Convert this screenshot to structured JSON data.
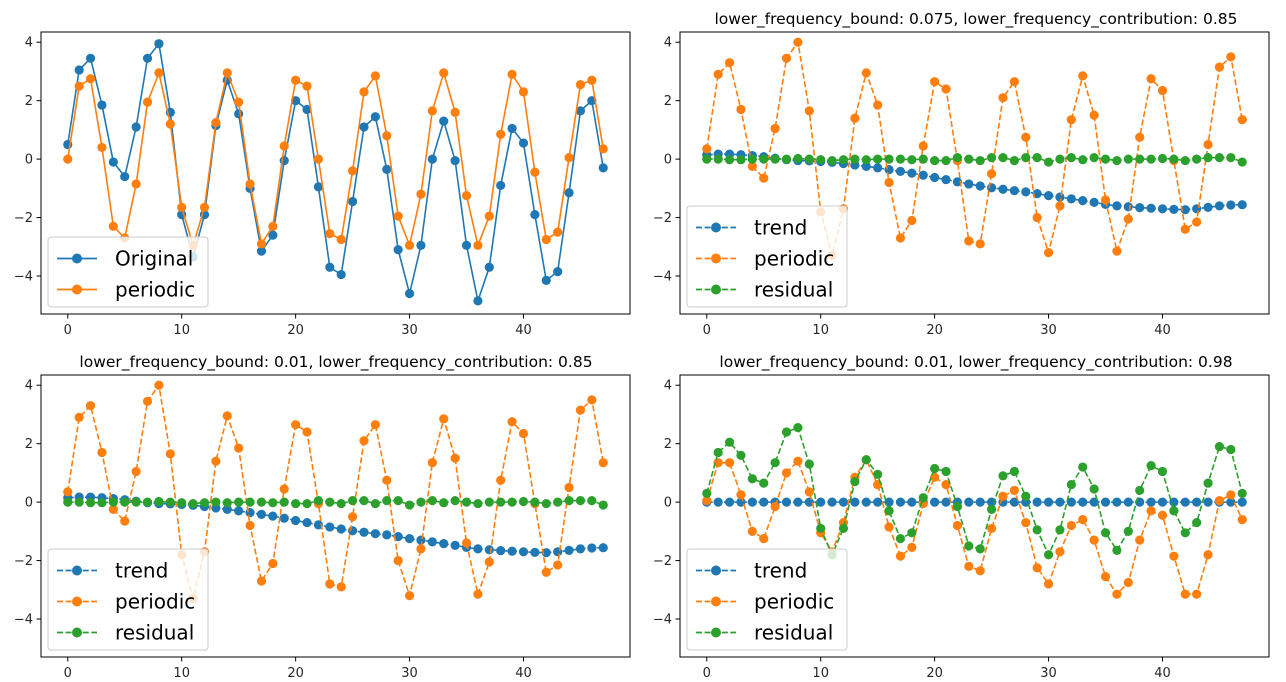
{
  "colors": {
    "trend": "#1f77b4",
    "original": "#1f77b4",
    "periodic": "#ff7f0e",
    "residual": "#2ca02c"
  },
  "chart_data": [
    {
      "type": "line",
      "title": "",
      "xlabel": "",
      "ylabel": "",
      "xlim": [
        -2.35,
        49.35
      ],
      "ylim": [
        -5.3,
        4.35
      ],
      "x_ticks": [
        0,
        10,
        20,
        30,
        40
      ],
      "y_ticks": [
        -4,
        -2,
        0,
        2,
        4
      ],
      "x_tick_labels": [
        "0",
        "10",
        "20",
        "30",
        "40"
      ],
      "y_tick_labels": [
        "−4",
        "−2",
        "0",
        "2",
        "4"
      ],
      "grid": false,
      "legend_position": "lower-left",
      "series": [
        {
          "name": "Original",
          "color": "#1f77b4",
          "linestyle": "solid",
          "values": [
            0.5,
            3.05,
            3.45,
            1.85,
            -0.1,
            -0.6,
            1.1,
            3.45,
            3.95,
            1.6,
            -1.9,
            -3.35,
            -1.9,
            1.15,
            2.7,
            1.55,
            -1.0,
            -3.15,
            -2.6,
            -0.05,
            2.0,
            1.7,
            -0.95,
            -3.7,
            -3.95,
            -1.45,
            1.1,
            1.45,
            -0.35,
            -3.1,
            -4.6,
            -2.95,
            0.0,
            1.3,
            -0.05,
            -2.95,
            -4.85,
            -3.7,
            -0.9,
            1.05,
            0.55,
            -1.9,
            -4.15,
            -3.85,
            -1.15,
            1.65,
            2.0,
            -0.3
          ]
        },
        {
          "name": "periodic",
          "color": "#ff7f0e",
          "linestyle": "solid",
          "values": [
            0.0,
            2.5,
            2.75,
            0.4,
            -2.3,
            -2.7,
            -0.85,
            1.95,
            2.95,
            1.2,
            -1.65,
            -2.95,
            -1.65,
            1.25,
            2.95,
            1.95,
            -0.85,
            -2.9,
            -2.3,
            0.45,
            2.7,
            2.5,
            0.0,
            -2.55,
            -2.75,
            -0.4,
            2.3,
            2.85,
            0.8,
            -1.95,
            -2.95,
            -1.2,
            1.65,
            2.95,
            1.6,
            -1.25,
            -2.95,
            -1.95,
            0.85,
            2.9,
            2.3,
            -0.45,
            -2.75,
            -2.5,
            0.05,
            2.55,
            2.7,
            0.35
          ]
        }
      ]
    },
    {
      "type": "line",
      "title": "lower_frequency_bound: 0.075, lower_frequency_contribution: 0.85",
      "xlabel": "",
      "ylabel": "",
      "xlim": [
        -2.35,
        49.35
      ],
      "ylim": [
        -5.3,
        4.35
      ],
      "x_ticks": [
        0,
        10,
        20,
        30,
        40
      ],
      "y_ticks": [
        -4,
        -2,
        0,
        2,
        4
      ],
      "x_tick_labels": [
        "0",
        "10",
        "20",
        "30",
        "40"
      ],
      "y_tick_labels": [
        "−4",
        "−2",
        "0",
        "2",
        "4"
      ],
      "grid": false,
      "legend_position": "lower-left",
      "series": [
        {
          "name": "trend",
          "color": "#1f77b4",
          "linestyle": "dashed",
          "values": [
            0.15,
            0.17,
            0.17,
            0.15,
            0.12,
            0.08,
            0.03,
            -0.02,
            -0.05,
            -0.06,
            -0.08,
            -0.11,
            -0.15,
            -0.2,
            -0.25,
            -0.3,
            -0.36,
            -0.42,
            -0.48,
            -0.55,
            -0.63,
            -0.7,
            -0.78,
            -0.85,
            -0.92,
            -0.98,
            -1.03,
            -1.08,
            -1.12,
            -1.18,
            -1.25,
            -1.3,
            -1.36,
            -1.42,
            -1.48,
            -1.55,
            -1.6,
            -1.63,
            -1.66,
            -1.68,
            -1.7,
            -1.72,
            -1.73,
            -1.7,
            -1.65,
            -1.6,
            -1.57,
            -1.56
          ]
        },
        {
          "name": "periodic",
          "color": "#ff7f0e",
          "linestyle": "dashed",
          "values": [
            0.35,
            2.9,
            3.3,
            1.7,
            -0.25,
            -0.65,
            1.05,
            3.45,
            4.0,
            1.65,
            -1.8,
            -3.3,
            -1.7,
            1.4,
            2.95,
            1.85,
            -0.8,
            -2.7,
            -2.1,
            0.45,
            2.65,
            2.4,
            -0.05,
            -2.8,
            -2.9,
            -0.5,
            2.1,
            2.65,
            0.75,
            -2.0,
            -3.2,
            -1.6,
            1.35,
            2.85,
            1.5,
            -1.4,
            -3.15,
            -2.05,
            0.75,
            2.75,
            2.35,
            -0.05,
            -2.4,
            -2.15,
            0.5,
            3.15,
            3.5,
            1.35
          ]
        },
        {
          "name": "residual",
          "color": "#2ca02c",
          "linestyle": "dashed",
          "values": [
            0.0,
            0.0,
            -0.02,
            -0.02,
            0.0,
            0.0,
            0.0,
            0.0,
            0.02,
            0.0,
            -0.02,
            -0.05,
            -0.02,
            0.0,
            -0.02,
            0.0,
            0.0,
            0.0,
            -0.02,
            0.0,
            -0.05,
            -0.05,
            0.05,
            0.0,
            -0.05,
            0.05,
            0.05,
            -0.05,
            0.05,
            0.05,
            -0.1,
            0.0,
            0.05,
            -0.02,
            0.05,
            0.0,
            -0.05,
            0.0,
            0.0,
            0.0,
            0.02,
            0.0,
            -0.05,
            0.0,
            0.05,
            0.05,
            0.05,
            -0.1
          ]
        }
      ]
    },
    {
      "type": "line",
      "title": "lower_frequency_bound: 0.01, lower_frequency_contribution: 0.85",
      "xlabel": "",
      "ylabel": "",
      "xlim": [
        -2.35,
        49.35
      ],
      "ylim": [
        -5.3,
        4.35
      ],
      "x_ticks": [
        0,
        10,
        20,
        30,
        40
      ],
      "y_ticks": [
        -4,
        -2,
        0,
        2,
        4
      ],
      "x_tick_labels": [
        "0",
        "10",
        "20",
        "30",
        "40"
      ],
      "y_tick_labels": [
        "−4",
        "−2",
        "0",
        "2",
        "4"
      ],
      "grid": false,
      "legend_position": "lower-left",
      "series": [
        {
          "name": "trend",
          "color": "#1f77b4",
          "linestyle": "dashed",
          "values": [
            0.15,
            0.17,
            0.17,
            0.15,
            0.12,
            0.08,
            0.03,
            -0.02,
            -0.05,
            -0.06,
            -0.08,
            -0.11,
            -0.15,
            -0.2,
            -0.25,
            -0.3,
            -0.36,
            -0.42,
            -0.48,
            -0.55,
            -0.63,
            -0.7,
            -0.78,
            -0.85,
            -0.92,
            -0.98,
            -1.03,
            -1.08,
            -1.12,
            -1.18,
            -1.25,
            -1.3,
            -1.36,
            -1.42,
            -1.48,
            -1.55,
            -1.6,
            -1.63,
            -1.66,
            -1.68,
            -1.7,
            -1.72,
            -1.73,
            -1.7,
            -1.65,
            -1.6,
            -1.57,
            -1.56
          ]
        },
        {
          "name": "periodic",
          "color": "#ff7f0e",
          "linestyle": "dashed",
          "values": [
            0.35,
            2.9,
            3.3,
            1.7,
            -0.25,
            -0.65,
            1.05,
            3.45,
            4.0,
            1.65,
            -1.8,
            -3.3,
            -1.7,
            1.4,
            2.95,
            1.85,
            -0.8,
            -2.7,
            -2.1,
            0.45,
            2.65,
            2.4,
            -0.05,
            -2.8,
            -2.9,
            -0.5,
            2.1,
            2.65,
            0.75,
            -2.0,
            -3.2,
            -1.6,
            1.35,
            2.85,
            1.5,
            -1.4,
            -3.15,
            -2.05,
            0.75,
            2.75,
            2.35,
            -0.05,
            -2.4,
            -2.15,
            0.5,
            3.15,
            3.5,
            1.35
          ]
        },
        {
          "name": "residual",
          "color": "#2ca02c",
          "linestyle": "dashed",
          "values": [
            0.0,
            0.0,
            -0.02,
            -0.02,
            0.0,
            0.0,
            0.0,
            0.0,
            0.02,
            0.0,
            -0.02,
            -0.05,
            -0.02,
            0.0,
            -0.02,
            0.0,
            0.0,
            0.0,
            -0.02,
            0.0,
            -0.05,
            -0.05,
            0.05,
            0.0,
            -0.05,
            0.05,
            0.05,
            -0.05,
            0.05,
            0.05,
            -0.1,
            0.0,
            0.05,
            -0.02,
            0.05,
            0.0,
            -0.05,
            0.0,
            0.0,
            0.0,
            0.02,
            0.0,
            -0.05,
            0.0,
            0.05,
            0.05,
            0.05,
            -0.1
          ]
        }
      ]
    },
    {
      "type": "line",
      "title": "lower_frequency_bound: 0.01, lower_frequency_contribution: 0.98",
      "xlabel": "",
      "ylabel": "",
      "xlim": [
        -2.35,
        49.35
      ],
      "ylim": [
        -5.3,
        4.35
      ],
      "x_ticks": [
        0,
        10,
        20,
        30,
        40
      ],
      "y_ticks": [
        -4,
        -2,
        0,
        2,
        4
      ],
      "x_tick_labels": [
        "0",
        "10",
        "20",
        "30",
        "40"
      ],
      "y_tick_labels": [
        "−4",
        "−2",
        "0",
        "2",
        "4"
      ],
      "grid": false,
      "legend_position": "lower-left",
      "series": [
        {
          "name": "trend",
          "color": "#1f77b4",
          "linestyle": "dashed",
          "values": [
            0,
            0,
            0,
            0,
            0,
            0,
            0,
            0,
            0,
            0,
            0,
            0,
            0,
            0,
            0,
            0,
            0,
            0,
            0,
            0,
            0,
            0,
            0,
            0,
            0,
            0,
            0,
            0,
            0,
            0,
            0,
            0,
            0,
            0,
            0,
            0,
            0,
            0,
            0,
            0,
            0,
            0,
            0,
            0,
            0,
            0,
            0,
            0
          ]
        },
        {
          "name": "periodic",
          "color": "#ff7f0e",
          "linestyle": "dashed",
          "values": [
            0.05,
            1.35,
            1.35,
            0.25,
            -1.0,
            -1.25,
            -0.15,
            1.0,
            1.4,
            0.35,
            -1.05,
            -1.7,
            -0.7,
            0.85,
            1.45,
            0.6,
            -0.85,
            -1.85,
            -1.55,
            -0.05,
            0.85,
            0.6,
            -0.8,
            -2.2,
            -2.35,
            -0.9,
            0.2,
            0.4,
            -0.7,
            -2.25,
            -2.8,
            -1.7,
            -0.8,
            -0.6,
            -1.3,
            -2.55,
            -3.15,
            -2.75,
            -1.3,
            -0.3,
            -0.45,
            -1.85,
            -3.15,
            -3.15,
            -1.8,
            0.05,
            0.25,
            -0.6
          ]
        },
        {
          "name": "residual",
          "color": "#2ca02c",
          "linestyle": "dashed",
          "values": [
            0.3,
            1.7,
            2.05,
            1.6,
            0.8,
            0.65,
            1.35,
            2.4,
            2.55,
            1.3,
            -0.9,
            -1.8,
            -0.9,
            0.7,
            1.45,
            0.95,
            -0.3,
            -1.25,
            -1.05,
            0.15,
            1.15,
            1.05,
            -0.15,
            -1.5,
            -1.6,
            -0.25,
            0.9,
            1.05,
            0.2,
            -0.95,
            -1.8,
            -0.95,
            0.6,
            1.2,
            0.45,
            -1.05,
            -1.65,
            -1.0,
            0.4,
            1.25,
            1.05,
            -0.3,
            -1.05,
            -0.7,
            0.65,
            1.9,
            1.8,
            0.3
          ]
        }
      ]
    }
  ]
}
